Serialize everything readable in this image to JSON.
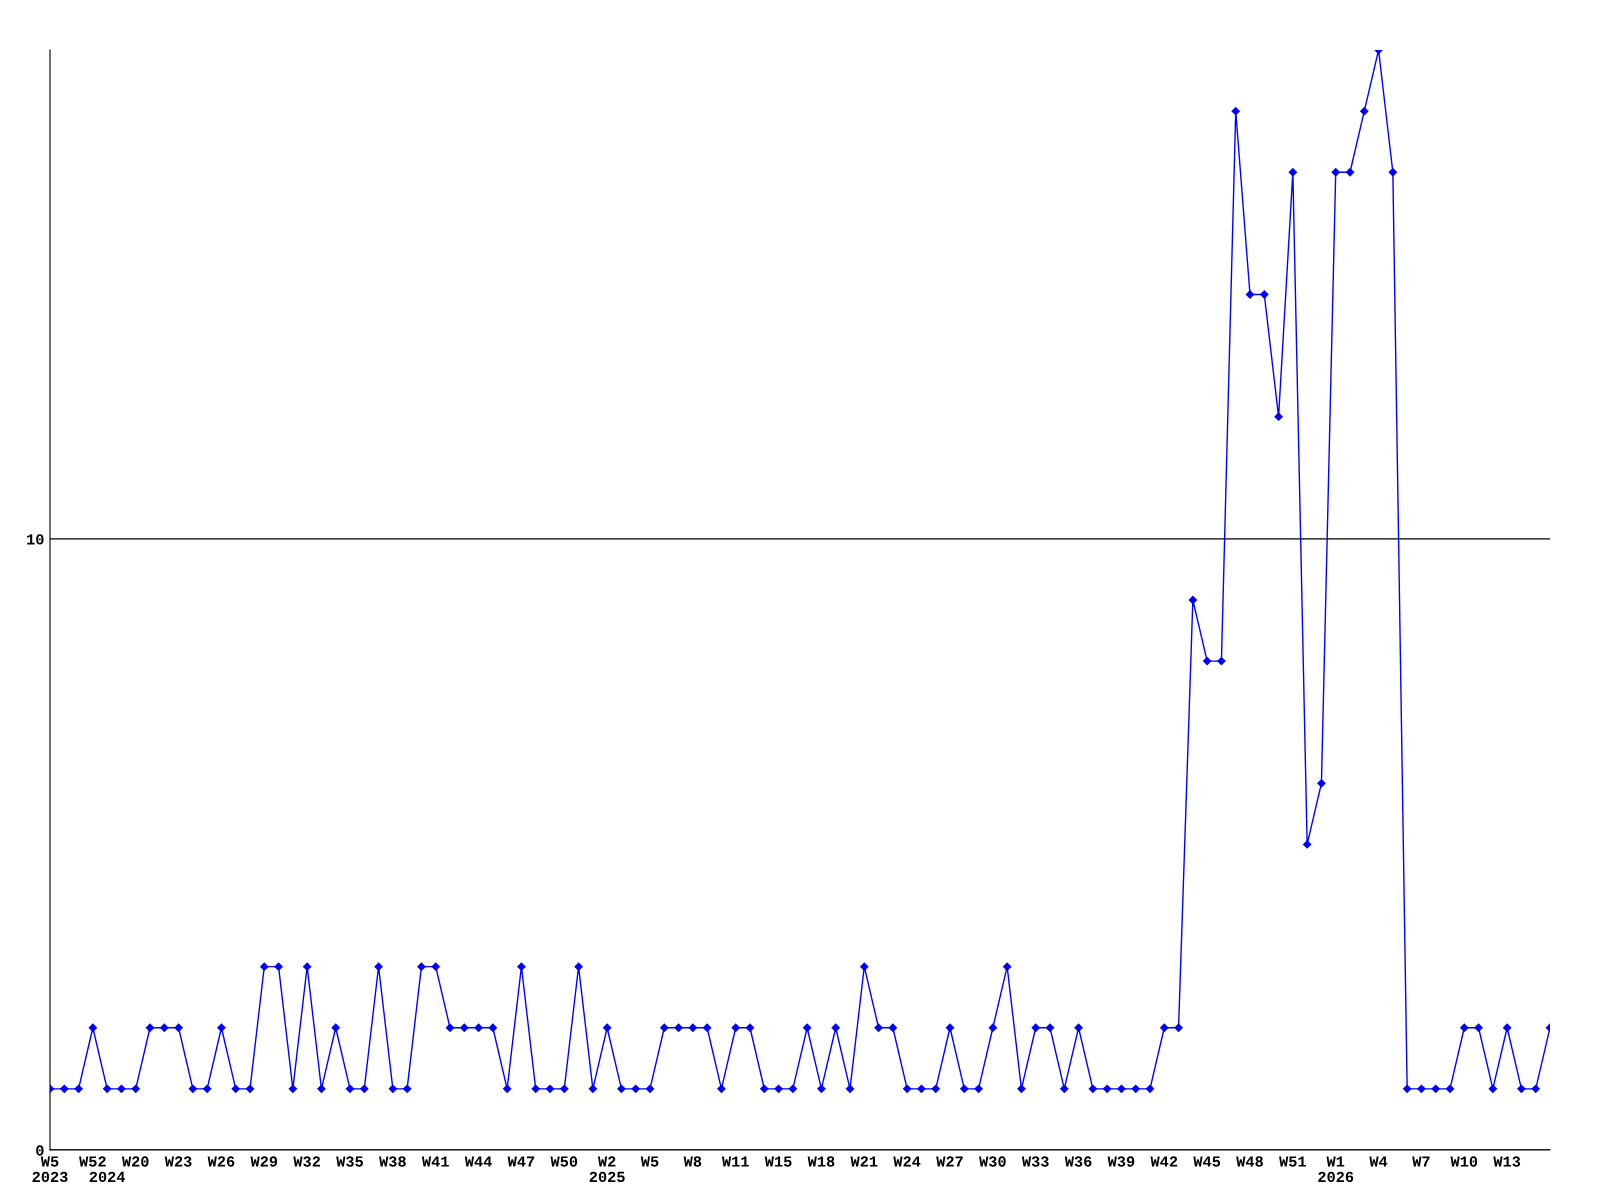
{
  "chart_data": {
    "type": "line",
    "categories": [
      "W5\n2023",
      null,
      null,
      "W52",
      "\n2024",
      null,
      "W20",
      null,
      null,
      "W23",
      null,
      null,
      "W26",
      null,
      null,
      "W29",
      null,
      null,
      "W32",
      null,
      null,
      "W35",
      null,
      null,
      "W38",
      null,
      null,
      "W41",
      null,
      null,
      "W44",
      null,
      null,
      "W47",
      null,
      null,
      "W50",
      null,
      null,
      "W2\n2025",
      null,
      null,
      "W5",
      null,
      null,
      "W8",
      null,
      null,
      "W11",
      null,
      null,
      "W15",
      null,
      null,
      "W18",
      null,
      null,
      "W21",
      null,
      null,
      "W24",
      null,
      null,
      "W27",
      null,
      null,
      "W30",
      null,
      null,
      "W33",
      null,
      null,
      "W36",
      null,
      null,
      "W39",
      null,
      null,
      "W42",
      null,
      null,
      "W45",
      null,
      null,
      "W48",
      null,
      null,
      "W51",
      null,
      null,
      "W1\n2026",
      null,
      null,
      "W4",
      null,
      null,
      "W7",
      null,
      null,
      "W10",
      null,
      null,
      "W13",
      null,
      null,
      null
    ],
    "series": [
      {
        "color": "#0000ff",
        "values": [
          1,
          1,
          1,
          2,
          1,
          1,
          1,
          2,
          2,
          2,
          1,
          1,
          2,
          1,
          1,
          3,
          3,
          1,
          3,
          1,
          2,
          1,
          1,
          3,
          1,
          1,
          3,
          3,
          2,
          2,
          2,
          2,
          1,
          3,
          1,
          1,
          1,
          3,
          1,
          2,
          1,
          1,
          1,
          2,
          2,
          2,
          2,
          1,
          2,
          2,
          1,
          1,
          1,
          2,
          1,
          2,
          1,
          3,
          2,
          2,
          1,
          1,
          1,
          2,
          1,
          1,
          2,
          3,
          1,
          2,
          2,
          1,
          2,
          1,
          1,
          1,
          1,
          1,
          2,
          2,
          9,
          8,
          8,
          17,
          14,
          14,
          12,
          16,
          5,
          6,
          16,
          16,
          17,
          18,
          16,
          1,
          1,
          1,
          1,
          2,
          2,
          1,
          2,
          1,
          1,
          2
        ]
      }
    ],
    "ylim": [
      0,
      18
    ],
    "yticks": [
      0,
      10
    ],
    "grid": "y",
    "marker": "diamond",
    "line_style": "solid"
  }
}
